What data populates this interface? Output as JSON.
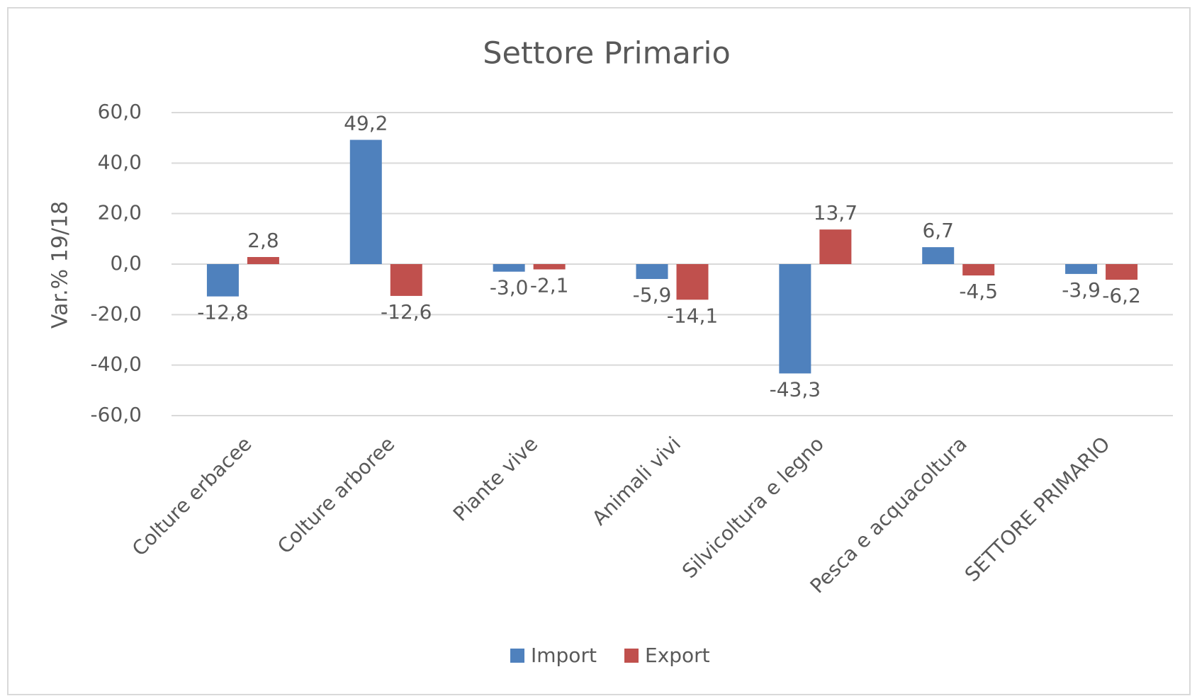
{
  "chart_data": {
    "type": "bar",
    "title": "Settore Primario",
    "y_label": "Var.% 19/18",
    "categories": [
      "Colture erbacee",
      "Colture arboree",
      "Piante vive",
      "Animali vivi",
      "Silvicoltura e legno",
      "Pesca e acquacoltura",
      "SETTORE PRIMARIO"
    ],
    "series": [
      {
        "name": "Import",
        "color": "#4f81bd",
        "values": [
          -12.8,
          49.2,
          -3.0,
          -5.9,
          -43.3,
          6.7,
          -3.9
        ],
        "value_labels": [
          "-12,8",
          "49,2",
          "-3,0",
          "-5,9",
          "-43,3",
          "6,7",
          "-3,9"
        ]
      },
      {
        "name": "Export",
        "color": "#c0504d",
        "values": [
          2.8,
          -12.6,
          -2.1,
          -14.1,
          13.7,
          -4.5,
          -6.2
        ],
        "value_labels": [
          "2,8",
          "-12,6",
          "-2,1",
          "-14,1",
          "13,7",
          "-4,5",
          "-6,2"
        ]
      }
    ],
    "ylim": [
      -60,
      60
    ],
    "yticks": [
      {
        "value": -60,
        "label": "-60,0"
      },
      {
        "value": -40,
        "label": "-40,0"
      },
      {
        "value": -20,
        "label": "-20,0"
      },
      {
        "value": 0,
        "label": "0,0"
      },
      {
        "value": 20,
        "label": "20,0"
      },
      {
        "value": 40,
        "label": "40,0"
      },
      {
        "value": 60,
        "label": "60,0"
      }
    ],
    "grid": true,
    "legend": "bottom"
  }
}
